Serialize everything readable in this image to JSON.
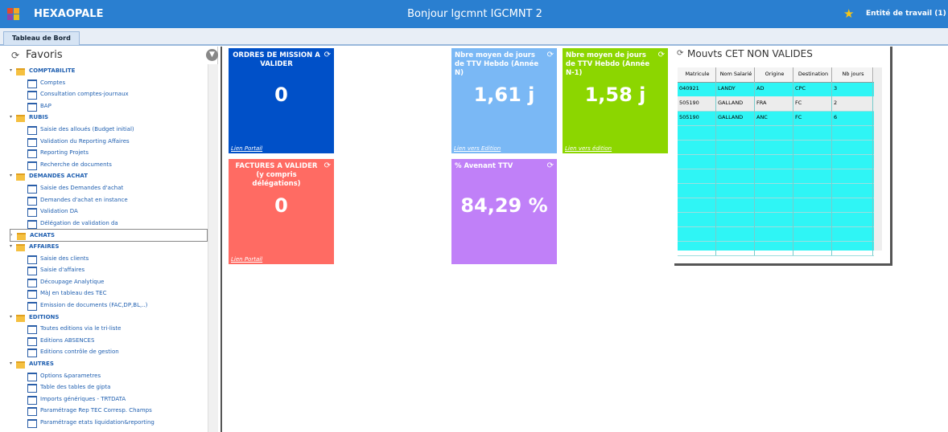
{
  "header": {
    "app_name": "HEXAOPALE",
    "greeting": "Bonjour lgcmnt IGCMNT 2",
    "entity": "Entité de travail (1)"
  },
  "tab": "Tableau de Bord",
  "sidebar": {
    "title": "Favoris",
    "groups": [
      {
        "label": "COMPTABILITE",
        "items": [
          "Comptes",
          "Consultation comptes-journaux",
          "BAP"
        ]
      },
      {
        "label": "RUBIS",
        "items": [
          "Saisie des alloués (Budget initial)",
          "Validation du Reporting Affaires",
          "Reporting Projets",
          "Recherche de documents"
        ]
      },
      {
        "label": "DEMANDES ACHAT",
        "items": [
          "Saisie des Demandes d'achat",
          "Demandes d'achat en instance",
          "Validation DA",
          "Délégation de validation da"
        ]
      },
      {
        "label": "ACHATS",
        "items": []
      },
      {
        "label": "AFFAIRES",
        "items": [
          "Saisie des clients",
          "Saisie d'affaires",
          "Découpage Analytique",
          "MàJ en tableau des TEC",
          "Emission de documents (FAC,DP,BL,..)"
        ]
      },
      {
        "label": "EDITIONS",
        "items": [
          "Toutes editions via le tri-liste",
          "Editions ABSENCES",
          "Editions contrôle de gestion"
        ]
      },
      {
        "label": "AUTRES",
        "items": [
          "Options &parametres",
          "Table des tables de gipta",
          "Imports génériques - TRTDATA",
          "Paramétrage Rep TEC Corresp. Champs",
          "Paramétrage etats  liquidation&reporting"
        ]
      }
    ]
  },
  "tiles": [
    {
      "title": "ORDRES DE MISSION A VALIDER",
      "value": "0",
      "link": "Lien Portail"
    },
    {
      "title": "FACTURES A VALIDER (y compris délégations)",
      "value": "0",
      "link": "Lien Portail"
    },
    {
      "title": "Nbre moyen de jours de TTV Hebdo (Année N)",
      "value": "1,61 j",
      "link": "Lien vers Edition"
    },
    {
      "title": "Nbre moyen de jours de TTV Hebdo (Année N-1)",
      "value": "1,58 j",
      "link": "Lien vers édition"
    },
    {
      "title": "% Avenant TTV",
      "value": "84,29 %"
    }
  ],
  "table": {
    "title": "Mouvts CET NON VALIDES",
    "columns": [
      "Matricule",
      "Nom Salarié",
      "Origine",
      "Destination",
      "Nb jours"
    ],
    "rows": [
      [
        "040921",
        "LANDY",
        "AD",
        "CPC",
        "3"
      ],
      [
        "505190",
        "GALLAND",
        "FRA",
        "FC",
        "2"
      ],
      [
        "505190",
        "GALLAND",
        "ANC",
        "FC",
        "6"
      ]
    ]
  }
}
